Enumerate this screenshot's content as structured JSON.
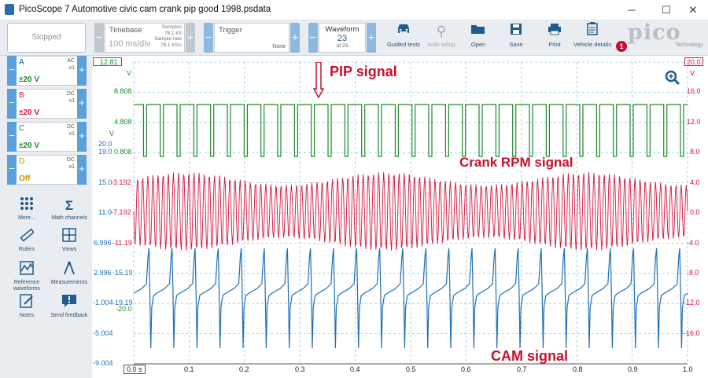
{
  "title": "PicoScope 7 Automotive civic cam crank pip good 1998.psdata",
  "window": {
    "minimize": "─",
    "maximize": "☐",
    "close": "✕"
  },
  "toolbar": {
    "stopped": "Stopped",
    "timebase": {
      "label": "Timebase",
      "value": "100 ms/div",
      "samples_label": "Samples",
      "samples": "78.1 kS",
      "rate_label": "Sample rate",
      "rate": "78.1 kS/s"
    },
    "trigger": {
      "label": "Trigger",
      "mode": "None"
    },
    "waveform": {
      "label": "Waveform",
      "current": "23",
      "of": "of 23"
    },
    "buttons": [
      {
        "label": "Guided tests",
        "icon": "car-icon"
      },
      {
        "label": "Auto setup",
        "icon": "wand-icon"
      },
      {
        "label": "Open",
        "icon": "folder-icon"
      },
      {
        "label": "Save",
        "icon": "save-icon"
      },
      {
        "label": "Print",
        "icon": "printer-icon"
      },
      {
        "label": "Vehicle details",
        "icon": "clipboard-icon"
      }
    ],
    "notification_count": "1",
    "logo": {
      "main": "pico",
      "sub": "Technology"
    }
  },
  "channels": [
    {
      "name": "A",
      "coupling": "AC",
      "probe": "x1",
      "range": "±20 V",
      "color": "#1e8a2a"
    },
    {
      "name": "B",
      "coupling": "DC",
      "probe": "x1",
      "range": "±20 V",
      "color": "#d4143a"
    },
    {
      "name": "C",
      "coupling": "DC",
      "probe": "x1",
      "range": "±20 V",
      "color": "#1e8a2a"
    },
    {
      "name": "D",
      "coupling": "DC",
      "probe": "x1",
      "range": "Off",
      "color": "#d08c00"
    }
  ],
  "tools": [
    {
      "label": "More...",
      "icon": "grid-dots-icon"
    },
    {
      "label": "Math channels",
      "icon": "sigma-icon"
    },
    {
      "label": "Rulers",
      "icon": "ruler-icon"
    },
    {
      "label": "Views",
      "icon": "views-icon"
    },
    {
      "label": "Reference waveforms",
      "icon": "reference-waveform-icon"
    },
    {
      "label": "Measurements",
      "icon": "measurement-icon"
    },
    {
      "label": "Notes",
      "icon": "notes-icon"
    },
    {
      "label": "Send feedback",
      "icon": "feedback-icon"
    }
  ],
  "plot": {
    "colors": {
      "green": "#1e8a2a",
      "red": "#d4143a",
      "blue": "#1f6fb5"
    },
    "green_axis_top": "12.81",
    "green_unit": "V",
    "right_axis_top": "20.0",
    "right_unit": "V",
    "left_labels": [
      "8.808",
      "4.808",
      "0.808",
      "-3.192",
      "-7.192",
      "-11.19",
      "-15.19",
      "-19.19"
    ],
    "left_extra": [
      "20.0",
      "19.0",
      "15.0",
      "11.0",
      "6.996",
      "2.996",
      "-1.004",
      "-5.004",
      "-9.004",
      "-20.0"
    ],
    "left_unit": "V",
    "right_labels": [
      "16.0",
      "12.0",
      "8.0",
      "4.0",
      "0.0",
      "-4.0",
      "-8.0",
      "-12.0",
      "-16.0"
    ],
    "x_labels": [
      "0.0 s",
      "0.1",
      "0.2",
      "0.3",
      "0.4",
      "0.5",
      "0.6",
      "0.7",
      "0.8",
      "0.9",
      "1.0"
    ],
    "annotations": {
      "pip": "PIP signal",
      "crank": "Crank RPM signal",
      "cam": "CAM signal"
    }
  }
}
